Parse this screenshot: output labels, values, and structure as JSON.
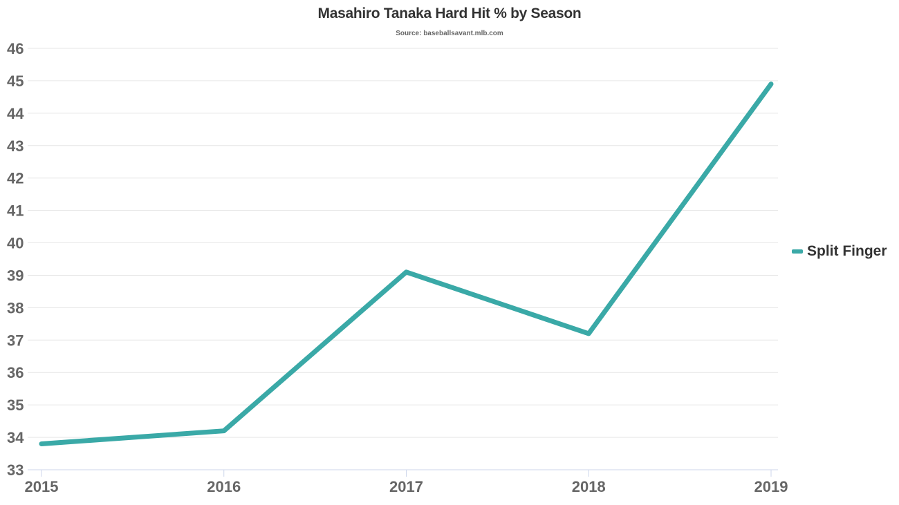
{
  "chart_data": {
    "type": "line",
    "title": "Masahiro Tanaka Hard Hit % by Season",
    "subtitle": "Source: baseballsavant.mlb.com",
    "xlabel": "",
    "ylabel": "",
    "x": [
      "2015",
      "2016",
      "2017",
      "2018",
      "2019"
    ],
    "series": [
      {
        "name": "Split Finger",
        "color": "#3aa9a7",
        "values": [
          33.8,
          34.2,
          39.1,
          37.2,
          44.9
        ]
      }
    ],
    "ylim": [
      33,
      46
    ],
    "yticks": [
      "33",
      "34",
      "35",
      "36",
      "37",
      "38",
      "39",
      "40",
      "41",
      "42",
      "43",
      "44",
      "45",
      "46"
    ],
    "grid": true,
    "legend_position": "right"
  }
}
